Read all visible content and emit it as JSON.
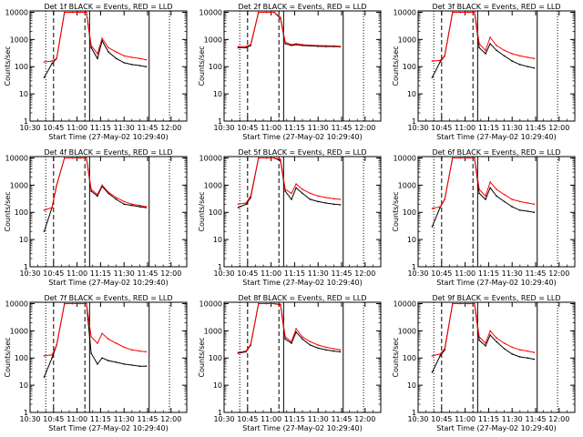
{
  "xlabel": "Start Time (27-May-02 10:29:40)",
  "ylabel": "Counts/sec",
  "y_scale": "log",
  "x_ticks": [
    "10:30",
    "10:45",
    "11:00",
    "11:15",
    "11:30",
    "11:45",
    "12:00"
  ],
  "y_ticks": [
    "1",
    "10",
    "100",
    "1000",
    "10000"
  ],
  "colors": {
    "events": "#000000",
    "lld": "#ff0000",
    "background": "#ffffff"
  },
  "chart_data": [
    {
      "type": "line",
      "title": "Det 1f BLACK = Events, RED = LLD",
      "xlabel": "Start Time (27-May-02 10:29:40)",
      "ylabel": "Counts/sec",
      "ylim": [
        1,
        10000
      ],
      "x": [
        "10:39",
        "10:44",
        "10:47",
        "10:52",
        "10:57",
        "11:02",
        "11:06",
        "11:09",
        "11:13",
        "11:16",
        "11:20",
        "11:25",
        "11:30",
        "11:35",
        "11:40",
        "11:44"
      ],
      "series": [
        {
          "name": "Events",
          "values": [
            40,
            130,
            200,
            10000,
            10000,
            10000,
            10000,
            500,
            200,
            900,
            350,
            200,
            140,
            120,
            110,
            100
          ]
        },
        {
          "name": "LLD",
          "values": [
            150,
            160,
            200,
            10000,
            10000,
            10000,
            10000,
            600,
            300,
            1100,
            500,
            350,
            250,
            220,
            200,
            180
          ]
        }
      ]
    },
    {
      "type": "line",
      "title": "Det 2f BLACK = Events, RED = LLD",
      "xlabel": "Start Time (27-May-02 10:29:40)",
      "ylabel": "Counts/sec",
      "ylim": [
        1,
        10000
      ],
      "x": [
        "10:39",
        "10:44",
        "10:47",
        "10:52",
        "10:57",
        "11:02",
        "11:06",
        "11:09",
        "11:13",
        "11:16",
        "11:20",
        "11:25",
        "11:30",
        "11:35",
        "11:40",
        "11:44"
      ],
      "series": [
        {
          "name": "Events",
          "values": [
            500,
            500,
            600,
            10000,
            10000,
            10000,
            6000,
            700,
            600,
            650,
            600,
            580,
            560,
            550,
            550,
            540
          ]
        },
        {
          "name": "LLD",
          "values": [
            550,
            550,
            650,
            10000,
            10000,
            10000,
            6500,
            800,
            650,
            700,
            650,
            620,
            600,
            590,
            580,
            560
          ]
        }
      ]
    },
    {
      "type": "line",
      "title": "Det 3f BLACK = Events, RED = LLD",
      "xlabel": "Start Time (27-May-02 10:29:40)",
      "ylabel": "Counts/sec",
      "ylim": [
        1,
        10000
      ],
      "x": [
        "10:39",
        "10:44",
        "10:47",
        "10:52",
        "10:57",
        "11:02",
        "11:06",
        "11:09",
        "11:13",
        "11:16",
        "11:20",
        "11:25",
        "11:30",
        "11:35",
        "11:40",
        "11:44"
      ],
      "series": [
        {
          "name": "Events",
          "values": [
            40,
            150,
            250,
            10000,
            10000,
            10000,
            10000,
            500,
            300,
            700,
            400,
            250,
            160,
            120,
            100,
            90
          ]
        },
        {
          "name": "LLD",
          "values": [
            160,
            170,
            250,
            10000,
            10000,
            10000,
            10000,
            700,
            400,
            1200,
            600,
            400,
            300,
            250,
            220,
            200
          ]
        }
      ]
    },
    {
      "type": "line",
      "title": "Det 4f BLACK = Events, RED = LLD",
      "xlabel": "Start Time (27-May-02 10:29:40)",
      "ylabel": "Counts/sec",
      "ylim": [
        1,
        10000
      ],
      "x": [
        "10:39",
        "10:44",
        "10:47",
        "10:52",
        "10:57",
        "11:02",
        "11:06",
        "11:09",
        "11:13",
        "11:16",
        "11:20",
        "11:25",
        "11:30",
        "11:35",
        "11:40",
        "11:44"
      ],
      "series": [
        {
          "name": "Events",
          "values": [
            20,
            150,
            1000,
            10000,
            10000,
            10000,
            10000,
            600,
            400,
            900,
            500,
            300,
            200,
            180,
            160,
            150
          ]
        },
        {
          "name": "LLD",
          "values": [
            120,
            150,
            1000,
            10000,
            10000,
            10000,
            10000,
            700,
            450,
            1000,
            550,
            350,
            250,
            200,
            180,
            160
          ]
        }
      ]
    },
    {
      "type": "line",
      "title": "Det 5f BLACK = Events, RED = LLD",
      "xlabel": "Start Time (27-May-02 10:29:40)",
      "ylabel": "Counts/sec",
      "ylim": [
        1,
        10000
      ],
      "x": [
        "10:39",
        "10:44",
        "10:47",
        "10:52",
        "10:57",
        "11:02",
        "11:06",
        "11:09",
        "11:13",
        "11:16",
        "11:20",
        "11:25",
        "11:30",
        "11:35",
        "11:40",
        "11:44"
      ],
      "series": [
        {
          "name": "Events",
          "values": [
            150,
            200,
            350,
            10000,
            10000,
            10000,
            8000,
            600,
            300,
            800,
            500,
            300,
            250,
            220,
            200,
            190
          ]
        },
        {
          "name": "LLD",
          "values": [
            200,
            220,
            400,
            10000,
            10000,
            10000,
            9000,
            700,
            500,
            1100,
            700,
            500,
            400,
            350,
            320,
            300
          ]
        }
      ]
    },
    {
      "type": "line",
      "title": "Det 6f BLACK = Events, RED = LLD",
      "xlabel": "Start Time (27-May-02 10:29:40)",
      "ylabel": "Counts/sec",
      "ylim": [
        1,
        10000
      ],
      "x": [
        "10:39",
        "10:44",
        "10:47",
        "10:52",
        "10:57",
        "11:02",
        "11:06",
        "11:09",
        "11:13",
        "11:16",
        "11:20",
        "11:25",
        "11:30",
        "11:35",
        "11:40",
        "11:44"
      ],
      "series": [
        {
          "name": "Events",
          "values": [
            30,
            150,
            300,
            10000,
            10000,
            10000,
            10000,
            500,
            300,
            800,
            400,
            250,
            160,
            120,
            110,
            100
          ]
        },
        {
          "name": "LLD",
          "values": [
            140,
            160,
            300,
            10000,
            10000,
            10000,
            10000,
            700,
            400,
            1300,
            700,
            450,
            300,
            250,
            220,
            200
          ]
        }
      ]
    },
    {
      "type": "line",
      "title": "Det 7f BLACK = Events, RED = LLD",
      "xlabel": "Start Time (27-May-02 10:29:40)",
      "ylabel": "Counts/sec",
      "ylim": [
        1,
        10000
      ],
      "x": [
        "10:39",
        "10:44",
        "10:47",
        "10:52",
        "10:57",
        "11:02",
        "11:06",
        "11:09",
        "11:13",
        "11:16",
        "11:20",
        "11:25",
        "11:30",
        "11:35",
        "11:40",
        "11:44"
      ],
      "series": [
        {
          "name": "Events",
          "values": [
            20,
            100,
            300,
            10000,
            10000,
            10000,
            10000,
            150,
            60,
            100,
            80,
            70,
            60,
            55,
            50,
            50
          ]
        },
        {
          "name": "LLD",
          "values": [
            120,
            130,
            300,
            10000,
            10000,
            10000,
            10000,
            600,
            350,
            800,
            500,
            350,
            250,
            200,
            180,
            170
          ]
        }
      ]
    },
    {
      "type": "line",
      "title": "Det 8f BLACK = Events, RED = LLD",
      "xlabel": "Start Time (27-May-02 10:29:40)",
      "ylabel": "Counts/sec",
      "ylim": [
        1,
        10000
      ],
      "x": [
        "10:39",
        "10:44",
        "10:47",
        "10:52",
        "10:57",
        "11:02",
        "11:06",
        "11:09",
        "11:13",
        "11:16",
        "11:20",
        "11:25",
        "11:30",
        "11:35",
        "11:40",
        "11:44"
      ],
      "series": [
        {
          "name": "Events",
          "values": [
            150,
            170,
            300,
            10000,
            10000,
            10000,
            9000,
            500,
            350,
            900,
            500,
            300,
            230,
            200,
            180,
            170
          ]
        },
        {
          "name": "LLD",
          "values": [
            160,
            180,
            320,
            10000,
            10000,
            10000,
            9500,
            600,
            400,
            1200,
            600,
            400,
            300,
            250,
            220,
            200
          ]
        }
      ]
    },
    {
      "type": "line",
      "title": "Det 9f BLACK = Events, RED = LLD",
      "xlabel": "Start Time (27-May-02 10:29:40)",
      "ylabel": "Counts/sec",
      "ylim": [
        1,
        10000
      ],
      "x": [
        "10:39",
        "10:44",
        "10:47",
        "10:52",
        "10:57",
        "11:02",
        "11:06",
        "11:09",
        "11:13",
        "11:16",
        "11:20",
        "11:25",
        "11:30",
        "11:35",
        "11:40",
        "11:44"
      ],
      "series": [
        {
          "name": "Events",
          "values": [
            30,
            120,
            200,
            10000,
            10000,
            10000,
            10000,
            450,
            280,
            700,
            400,
            220,
            140,
            110,
            100,
            90
          ]
        },
        {
          "name": "LLD",
          "values": [
            120,
            140,
            220,
            10000,
            10000,
            10000,
            10000,
            600,
            350,
            1000,
            550,
            350,
            250,
            200,
            180,
            160
          ]
        }
      ]
    }
  ]
}
